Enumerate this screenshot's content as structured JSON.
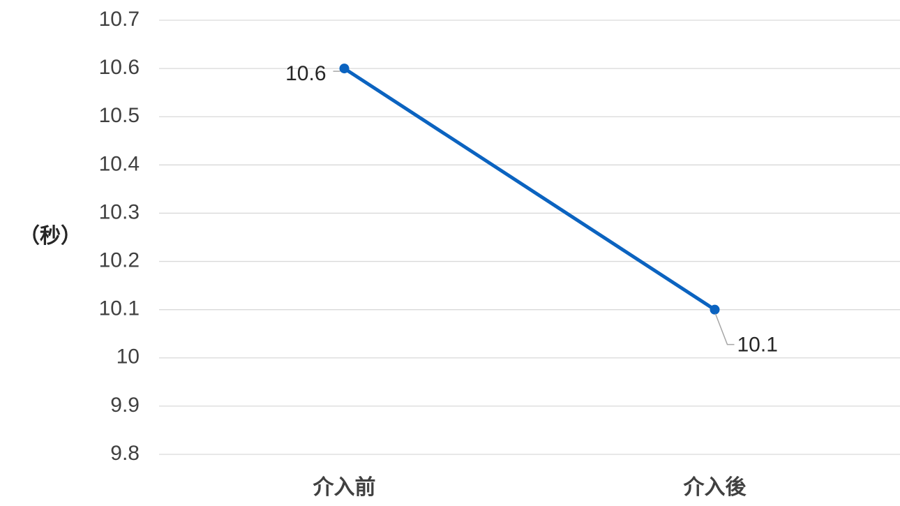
{
  "chart_data": {
    "type": "line",
    "title": "",
    "xlabel": "",
    "ylabel": "（秒）",
    "categories": [
      "介入前",
      "介入後"
    ],
    "series": [
      {
        "values": [
          10.6,
          10.1
        ],
        "color": "#0B63C0",
        "data_labels": [
          "10.6",
          "10.1"
        ]
      }
    ],
    "ylim": [
      9.8,
      10.7
    ],
    "yticks": [
      "10.7",
      "10.6",
      "10.5",
      "10.4",
      "10.3",
      "10.2",
      "10.1",
      "10",
      "9.9",
      "9.8"
    ],
    "grid": true,
    "legend": "none",
    "colors": {
      "gridline": "#D9D9D9",
      "leader_line": "#A6A6A6",
      "tick_text": "#404040"
    }
  }
}
